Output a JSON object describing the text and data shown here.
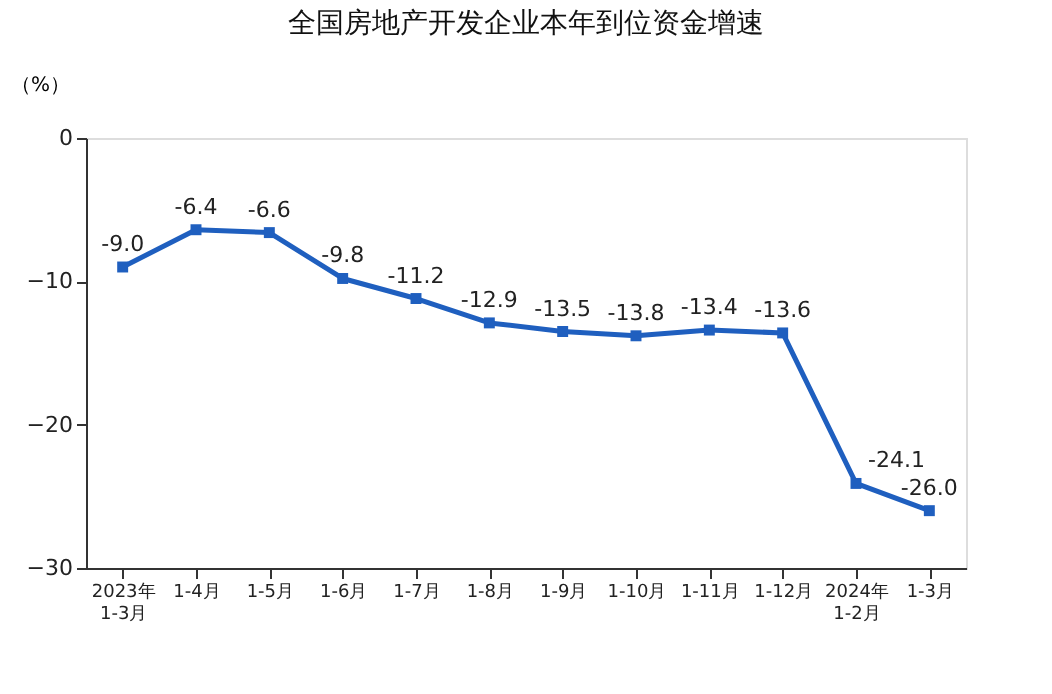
{
  "chart_data": {
    "type": "line",
    "title": "全国房地产开发企业本年到位资金增速",
    "ylabel": "（%）",
    "categories": [
      "2023年\n1-3月",
      "1-4月",
      "1-5月",
      "1-6月",
      "1-7月",
      "1-8月",
      "1-9月",
      "1-10月",
      "1-11月",
      "1-12月",
      "2024年\n1-2月",
      "1-3月"
    ],
    "series": [
      {
        "color": "#1f5fbf",
        "values": [
          -9.0,
          -6.4,
          -6.6,
          -9.8,
          -11.2,
          -12.9,
          -13.5,
          -13.8,
          -13.4,
          -13.6,
          -24.1,
          -26.0
        ],
        "value_labels": [
          "-9.0",
          "-6.4",
          "-6.6",
          "-9.8",
          "-11.2",
          "-12.9",
          "-13.5",
          "-13.8",
          "-13.4",
          "-13.6",
          "-24.1",
          "-26.0"
        ]
      }
    ],
    "ylim": [
      -30,
      0
    ],
    "yticks": [
      -30,
      -20,
      -10,
      0
    ],
    "grid": false,
    "marker": "square",
    "line_style": "solid"
  }
}
